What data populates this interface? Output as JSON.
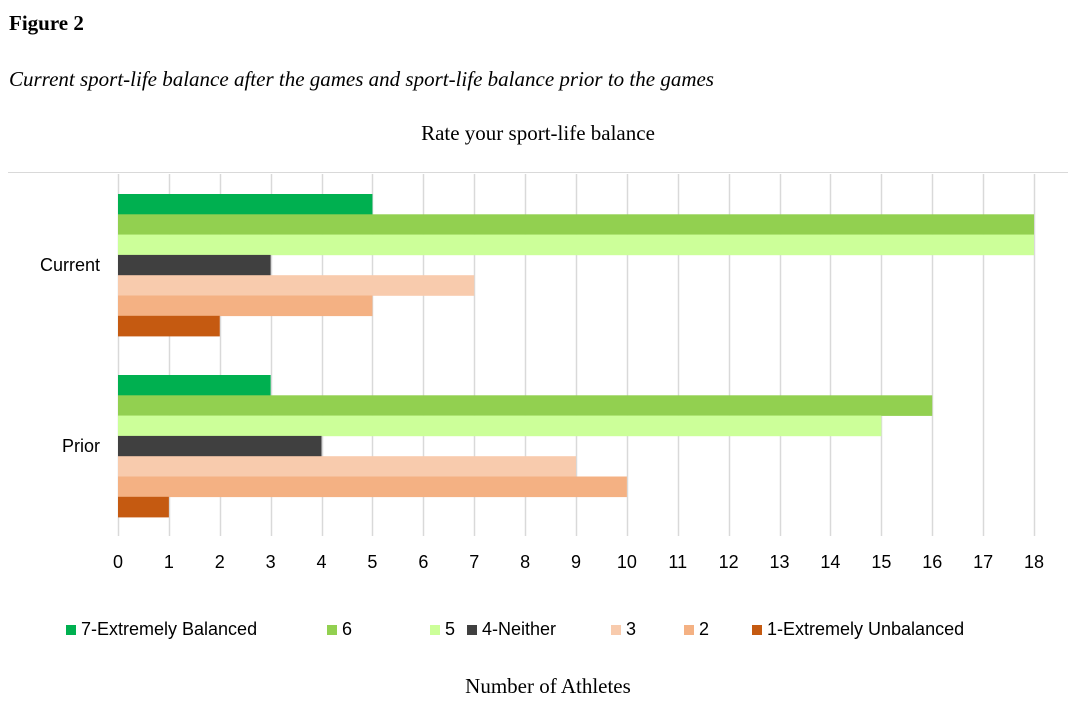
{
  "figure": {
    "label": "Figure 2",
    "caption": "Current sport-life balance after the games and sport-life balance prior to the games"
  },
  "chart_data": {
    "type": "bar",
    "orientation": "horizontal",
    "title": "Rate your sport-life balance",
    "xlabel": "Number of Athletes",
    "ylabel": "",
    "categories": [
      "Current",
      "Prior"
    ],
    "xlim": [
      0,
      18
    ],
    "xticks": [
      0,
      1,
      2,
      3,
      4,
      5,
      6,
      7,
      8,
      9,
      10,
      11,
      12,
      13,
      14,
      15,
      16,
      17,
      18
    ],
    "grid": "vertical",
    "legend_position": "bottom",
    "series": [
      {
        "name": "7-Extremely Balanced",
        "color": "#00b050",
        "values": [
          5,
          3
        ]
      },
      {
        "name": "6",
        "color": "#92d050",
        "values": [
          18,
          16
        ]
      },
      {
        "name": "5",
        "color": "#ccff99",
        "values": [
          18,
          15
        ]
      },
      {
        "name": "4-Neither",
        "color": "#404040",
        "values": [
          3,
          4
        ]
      },
      {
        "name": "3",
        "color": "#f8cbad",
        "values": [
          7,
          9
        ]
      },
      {
        "name": "2",
        "color": "#f4b183",
        "values": [
          5,
          10
        ]
      },
      {
        "name": "1-Extremely Unbalanced",
        "color": "#c55a11",
        "values": [
          2,
          1
        ]
      }
    ]
  }
}
